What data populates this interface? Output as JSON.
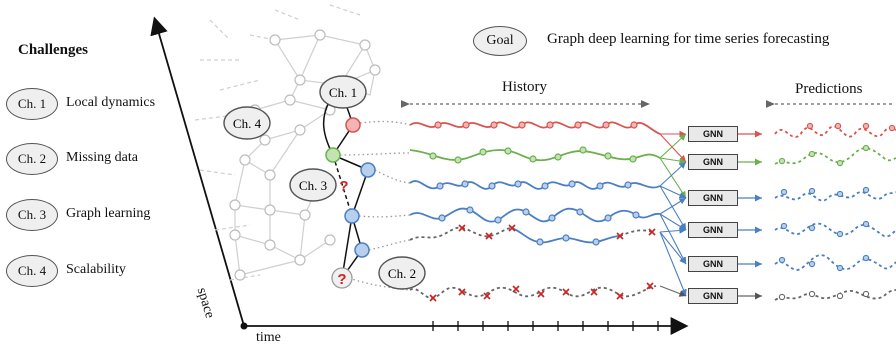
{
  "challenges": {
    "title": "Challenges",
    "items": [
      {
        "tag": "Ch. 1",
        "label": "Local dynamics"
      },
      {
        "tag": "Ch. 2",
        "label": "Missing data"
      },
      {
        "tag": "Ch. 3",
        "label": "Graph learning"
      },
      {
        "tag": "Ch. 4",
        "label": "Scalability"
      }
    ]
  },
  "goal": {
    "tag": "Goal",
    "text": "Graph deep learning for time series forecasting"
  },
  "sections": {
    "history": "History",
    "predictions": "Predictions"
  },
  "axes": {
    "space": "space",
    "time": "time"
  },
  "graph_tags": {
    "ch1": "Ch. 1",
    "ch2": "Ch. 2",
    "ch3": "Ch. 3",
    "ch4": "Ch. 4"
  },
  "unknown_mark": "?",
  "gnn_label": "GNN",
  "colors": {
    "red": "#d9534f",
    "green": "#6ab04c",
    "blue": "#4a7fc1",
    "gray": "#555555",
    "missing": "#cc2222"
  }
}
